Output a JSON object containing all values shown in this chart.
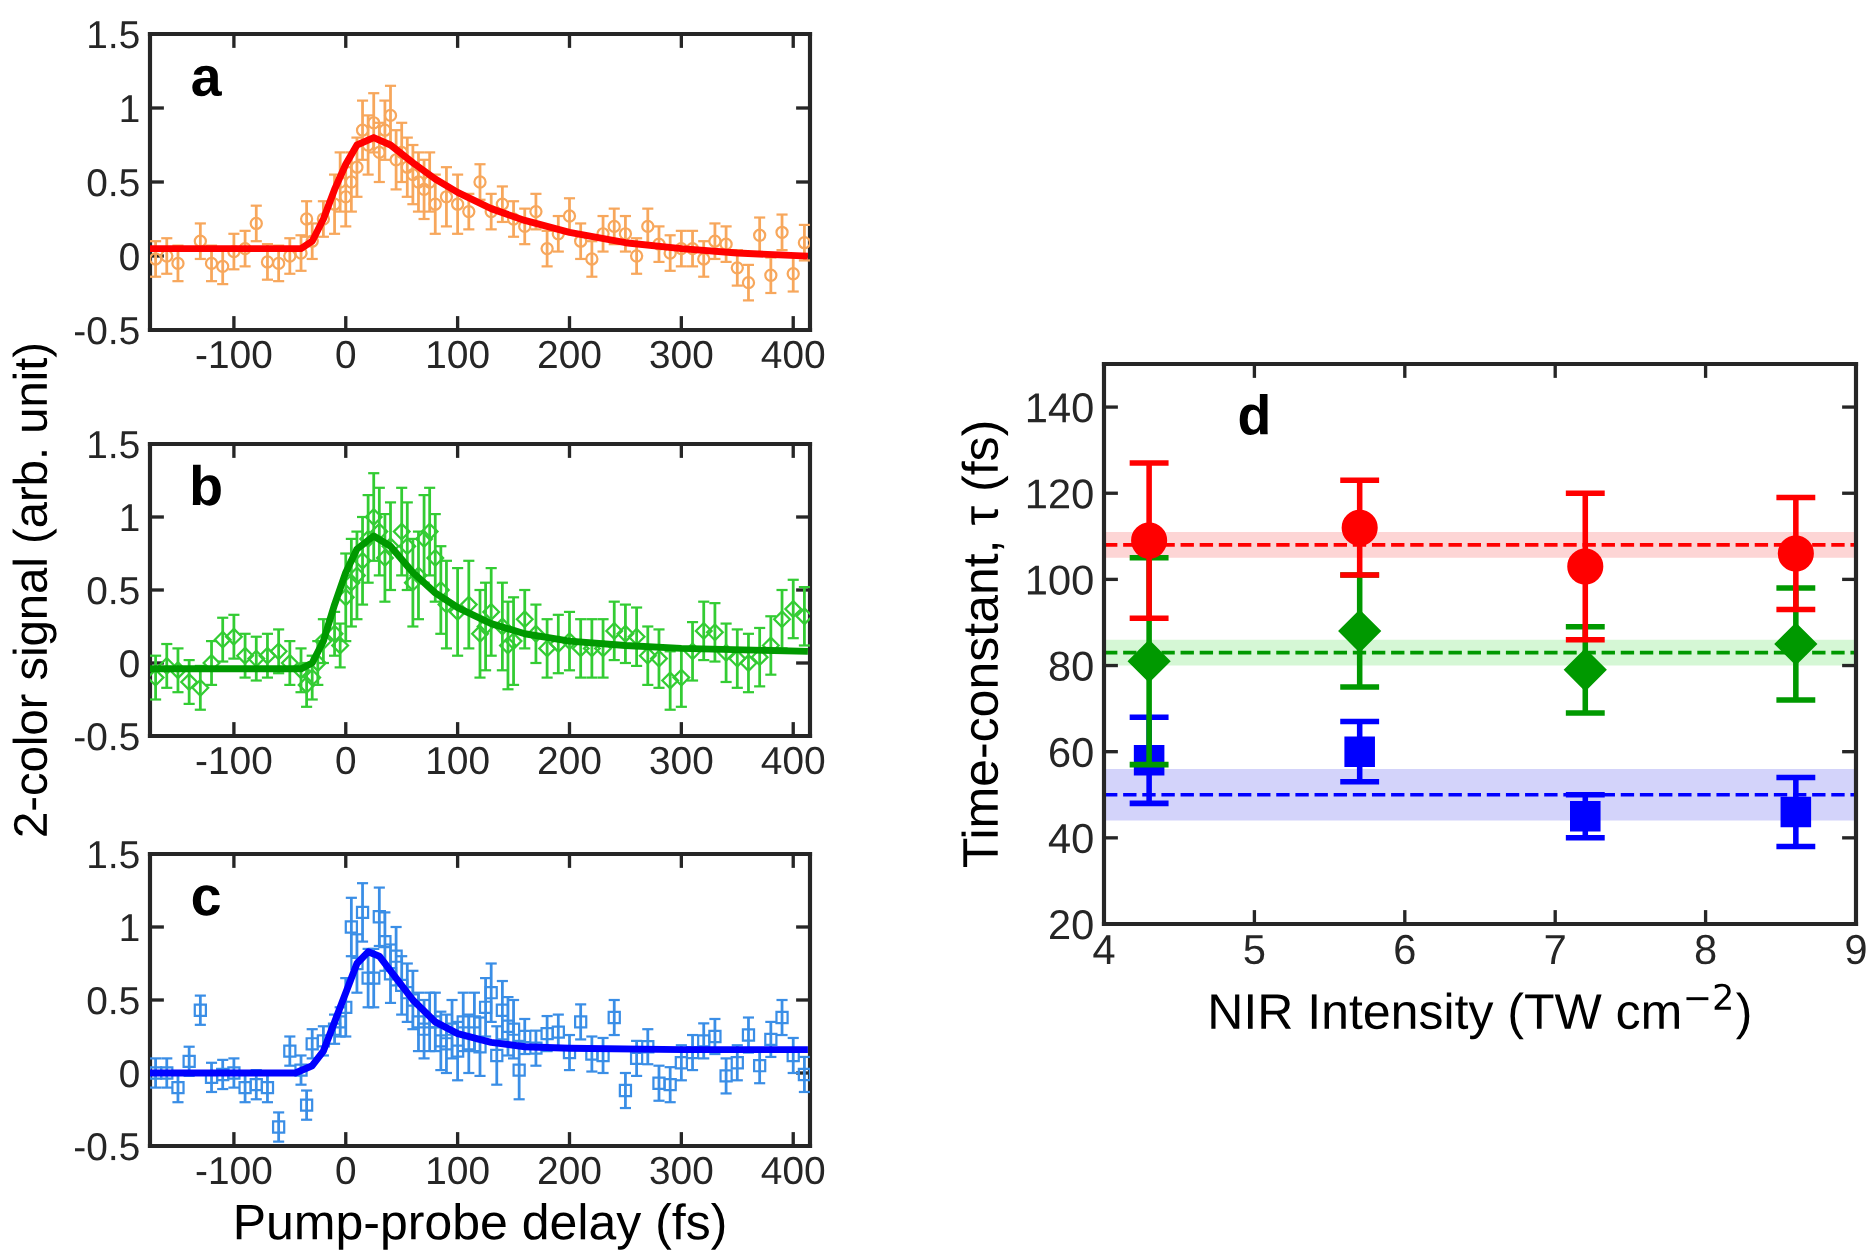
{
  "chart_data": [
    {
      "type": "scatter",
      "xlim": [
        -175,
        415
      ],
      "xticks": [
        -100,
        0,
        100,
        200,
        300,
        400
      ],
      "ylim": [
        -0.5,
        1.5
      ],
      "yticks": [
        -0.5,
        0,
        0.5,
        1,
        1.5
      ],
      "grid": false,
      "annotations": [
        "a"
      ],
      "series": [
        {
          "type": "scatter",
          "marker": "circle",
          "color": "#f7a75c",
          "x": [
            -170,
            -160,
            -150,
            -130,
            -120,
            -110,
            -100,
            -90,
            -80,
            -70,
            -60,
            -50,
            -40,
            -35,
            -30,
            -20,
            -10,
            -5,
            0,
            5,
            10,
            15,
            20,
            25,
            30,
            35,
            40,
            45,
            50,
            55,
            60,
            65,
            70,
            75,
            80,
            90,
            100,
            110,
            120,
            130,
            140,
            150,
            160,
            170,
            180,
            190,
            200,
            210,
            220,
            230,
            240,
            250,
            260,
            270,
            280,
            290,
            300,
            310,
            320,
            330,
            340,
            350,
            360,
            370,
            380,
            390,
            400,
            410
          ],
          "values": [
            -0.02,
            0.0,
            -0.05,
            0.1,
            -0.05,
            -0.07,
            0.03,
            0.05,
            0.22,
            -0.04,
            -0.05,
            0.0,
            0.02,
            0.25,
            0.1,
            0.25,
            0.35,
            0.5,
            0.4,
            0.5,
            0.6,
            0.85,
            0.75,
            0.9,
            0.7,
            0.85,
            0.95,
            0.65,
            0.7,
            0.6,
            0.55,
            0.5,
            0.45,
            0.5,
            0.35,
            0.4,
            0.35,
            0.3,
            0.5,
            0.3,
            0.35,
            0.25,
            0.2,
            0.3,
            0.05,
            0.15,
            0.27,
            0.1,
            -0.02,
            0.15,
            0.2,
            0.15,
            0.0,
            0.2,
            0.08,
            0.02,
            0.05,
            0.05,
            -0.02,
            0.1,
            0.08,
            -0.08,
            -0.18,
            0.14,
            -0.13,
            0.16,
            -0.12,
            0.09
          ],
          "errors": [
            0.12,
            0.12,
            0.12,
            0.12,
            0.12,
            0.12,
            0.12,
            0.12,
            0.12,
            0.12,
            0.12,
            0.12,
            0.12,
            0.12,
            0.12,
            0.12,
            0.2,
            0.2,
            0.2,
            0.2,
            0.2,
            0.2,
            0.2,
            0.2,
            0.2,
            0.2,
            0.2,
            0.2,
            0.2,
            0.2,
            0.2,
            0.2,
            0.2,
            0.2,
            0.2,
            0.2,
            0.2,
            0.12,
            0.12,
            0.12,
            0.12,
            0.12,
            0.12,
            0.12,
            0.12,
            0.12,
            0.12,
            0.12,
            0.12,
            0.12,
            0.12,
            0.12,
            0.12,
            0.12,
            0.12,
            0.12,
            0.12,
            0.12,
            0.12,
            0.12,
            0.12,
            0.12,
            0.12,
            0.12,
            0.12,
            0.12,
            0.12,
            0.12
          ]
        },
        {
          "type": "line",
          "color": "#ff0000",
          "x": [
            -175,
            -40,
            -30,
            -20,
            -10,
            0,
            10,
            25,
            40,
            60,
            80,
            100,
            130,
            160,
            200,
            250,
            300,
            350,
            410
          ],
          "values": [
            0.05,
            0.05,
            0.1,
            0.25,
            0.45,
            0.62,
            0.75,
            0.8,
            0.75,
            0.63,
            0.52,
            0.43,
            0.32,
            0.24,
            0.16,
            0.09,
            0.05,
            0.02,
            0.0
          ]
        }
      ]
    },
    {
      "type": "scatter",
      "xlim": [
        -175,
        415
      ],
      "xticks": [
        -100,
        0,
        100,
        200,
        300,
        400
      ],
      "ylim": [
        -0.5,
        1.5
      ],
      "yticks": [
        -0.5,
        0,
        0.5,
        1,
        1.5
      ],
      "grid": false,
      "annotations": [
        "b"
      ],
      "ylabel": "2-color signal (arb. unit)",
      "series": [
        {
          "type": "scatter",
          "marker": "diamond",
          "color": "#33cc33",
          "x": [
            -170,
            -160,
            -150,
            -140,
            -130,
            -120,
            -110,
            -100,
            -90,
            -80,
            -70,
            -60,
            -50,
            -40,
            -35,
            -30,
            -25,
            -20,
            -10,
            -5,
            0,
            5,
            10,
            15,
            20,
            25,
            30,
            35,
            40,
            50,
            55,
            60,
            65,
            70,
            75,
            80,
            85,
            90,
            100,
            110,
            120,
            125,
            130,
            140,
            145,
            150,
            160,
            170,
            180,
            190,
            200,
            210,
            220,
            230,
            240,
            250,
            260,
            270,
            280,
            290,
            300,
            310,
            320,
            330,
            340,
            350,
            360,
            370,
            380,
            390,
            400,
            410
          ],
          "values": [
            -0.1,
            -0.02,
            -0.05,
            -0.13,
            -0.17,
            0.0,
            0.16,
            0.18,
            0.05,
            0.03,
            0.05,
            0.08,
            0.0,
            -0.05,
            -0.15,
            -0.1,
            0.0,
            0.15,
            0.2,
            0.12,
            0.45,
            0.55,
            0.6,
            0.7,
            0.85,
            1.0,
            0.9,
            0.72,
            0.8,
            0.9,
            0.8,
            0.55,
            0.6,
            0.85,
            0.9,
            0.72,
            0.5,
            0.4,
            0.35,
            0.4,
            0.2,
            0.25,
            0.35,
            0.25,
            0.12,
            0.15,
            0.3,
            0.2,
            0.1,
            0.13,
            0.15,
            0.1,
            0.1,
            0.1,
            0.22,
            0.2,
            0.18,
            0.05,
            0.03,
            -0.12,
            -0.1,
            0.08,
            0.22,
            0.21,
            0.07,
            0.03,
            0.0,
            0.04,
            0.12,
            0.3,
            0.37,
            0.32
          ],
          "errors": [
            0.15,
            0.15,
            0.15,
            0.15,
            0.15,
            0.15,
            0.15,
            0.15,
            0.15,
            0.15,
            0.15,
            0.15,
            0.15,
            0.15,
            0.15,
            0.15,
            0.15,
            0.15,
            0.15,
            0.15,
            0.3,
            0.3,
            0.3,
            0.3,
            0.3,
            0.3,
            0.3,
            0.3,
            0.3,
            0.3,
            0.3,
            0.3,
            0.3,
            0.3,
            0.3,
            0.3,
            0.3,
            0.3,
            0.3,
            0.3,
            0.3,
            0.3,
            0.3,
            0.3,
            0.3,
            0.3,
            0.2,
            0.2,
            0.2,
            0.2,
            0.2,
            0.2,
            0.2,
            0.2,
            0.2,
            0.2,
            0.2,
            0.2,
            0.2,
            0.2,
            0.2,
            0.2,
            0.2,
            0.2,
            0.2,
            0.2,
            0.2,
            0.2,
            0.2,
            0.2,
            0.2,
            0.2
          ]
        },
        {
          "type": "line",
          "color": "#009900",
          "x": [
            -175,
            -40,
            -30,
            -20,
            -10,
            0,
            10,
            25,
            40,
            60,
            80,
            100,
            130,
            160,
            200,
            250,
            300,
            410
          ],
          "values": [
            -0.04,
            -0.04,
            0.0,
            0.15,
            0.4,
            0.62,
            0.78,
            0.87,
            0.8,
            0.62,
            0.48,
            0.38,
            0.27,
            0.2,
            0.15,
            0.12,
            0.1,
            0.08
          ]
        }
      ]
    },
    {
      "type": "scatter",
      "xlim": [
        -175,
        415
      ],
      "xticks": [
        -100,
        0,
        100,
        200,
        300,
        400
      ],
      "ylim": [
        -0.5,
        1.5
      ],
      "yticks": [
        -0.5,
        0,
        0.5,
        1,
        1.5
      ],
      "grid": false,
      "annotations": [
        "c"
      ],
      "xlabel": "Pump-probe delay (fs)",
      "series": [
        {
          "type": "scatter",
          "marker": "square",
          "color": "#3a8ee6",
          "x": [
            -170,
            -160,
            -150,
            -140,
            -130,
            -120,
            -110,
            -100,
            -90,
            -80,
            -70,
            -60,
            -50,
            -40,
            -35,
            -30,
            -20,
            -10,
            -5,
            0,
            5,
            10,
            15,
            20,
            25,
            30,
            35,
            40,
            45,
            50,
            55,
            60,
            65,
            70,
            75,
            80,
            85,
            90,
            95,
            100,
            105,
            110,
            115,
            120,
            125,
            130,
            135,
            140,
            145,
            150,
            155,
            160,
            170,
            180,
            190,
            200,
            210,
            220,
            230,
            240,
            250,
            260,
            270,
            280,
            290,
            300,
            310,
            320,
            330,
            340,
            350,
            360,
            370,
            380,
            390,
            400,
            410
          ],
          "values": [
            0.0,
            0.0,
            -0.1,
            0.08,
            0.43,
            -0.03,
            -0.01,
            0.0,
            -0.1,
            -0.08,
            -0.1,
            -0.37,
            0.15,
            0.02,
            -0.22,
            0.2,
            0.22,
            0.3,
            0.35,
            0.45,
            1.0,
            0.75,
            1.1,
            0.65,
            0.65,
            1.07,
            0.9,
            0.68,
            0.8,
            0.6,
            0.55,
            0.5,
            0.35,
            0.3,
            0.35,
            0.35,
            0.22,
            0.2,
            0.3,
            0.15,
            0.35,
            0.2,
            0.35,
            0.18,
            0.45,
            0.55,
            0.12,
            0.43,
            0.32,
            0.3,
            0.02,
            0.25,
            0.17,
            0.27,
            0.28,
            0.14,
            0.35,
            0.13,
            0.12,
            0.38,
            -0.12,
            0.1,
            0.18,
            -0.07,
            -0.08,
            0.07,
            0.14,
            0.22,
            0.25,
            -0.02,
            0.07,
            0.26,
            0.05,
            0.23,
            0.38,
            0.12,
            -0.01
          ],
          "errors": [
            0.1,
            0.1,
            0.1,
            0.1,
            0.1,
            0.1,
            0.1,
            0.1,
            0.1,
            0.1,
            0.1,
            0.1,
            0.1,
            0.1,
            0.1,
            0.1,
            0.1,
            0.1,
            0.1,
            0.2,
            0.2,
            0.2,
            0.2,
            0.2,
            0.2,
            0.2,
            0.2,
            0.2,
            0.2,
            0.2,
            0.2,
            0.2,
            0.2,
            0.2,
            0.2,
            0.2,
            0.2,
            0.2,
            0.2,
            0.2,
            0.2,
            0.2,
            0.2,
            0.2,
            0.2,
            0.2,
            0.2,
            0.2,
            0.2,
            0.2,
            0.2,
            0.12,
            0.12,
            0.12,
            0.12,
            0.12,
            0.12,
            0.12,
            0.12,
            0.12,
            0.12,
            0.12,
            0.12,
            0.12,
            0.12,
            0.12,
            0.12,
            0.12,
            0.12,
            0.12,
            0.12,
            0.12,
            0.12,
            0.12,
            0.12,
            0.12,
            0.12
          ]
        },
        {
          "type": "line",
          "color": "#0000ff",
          "x": [
            -175,
            -45,
            -30,
            -20,
            -10,
            0,
            10,
            20,
            30,
            45,
            60,
            80,
            100,
            130,
            160,
            200,
            300,
            410
          ],
          "values": [
            0.0,
            0.0,
            0.05,
            0.15,
            0.35,
            0.55,
            0.75,
            0.83,
            0.8,
            0.65,
            0.5,
            0.35,
            0.27,
            0.21,
            0.18,
            0.17,
            0.16,
            0.16
          ]
        }
      ]
    },
    {
      "type": "scatter",
      "xlim": [
        4,
        9
      ],
      "xticks": [
        4,
        5,
        6,
        7,
        8,
        9
      ],
      "ylim": [
        20,
        150
      ],
      "yticks": [
        20,
        40,
        60,
        80,
        100,
        120,
        140
      ],
      "grid": false,
      "annotations": [
        "d"
      ],
      "xlabel": "NIR Intensity (TW cm$^{−2}$)",
      "ylabel": "Time-constant, τ (fs)",
      "x": [
        4.3,
        5.7,
        7.2,
        8.6
      ],
      "series": [
        {
          "marker": "circle",
          "color": "#ff0000",
          "values": [
            109,
            112,
            103,
            106
          ],
          "errors": [
            [
              91,
              127
            ],
            [
              101,
              123
            ],
            [
              86,
              120
            ],
            [
              93,
              119
            ]
          ]
        },
        {
          "marker": "diamond",
          "color": "#009900",
          "values": [
            81,
            88,
            79,
            85
          ],
          "errors": [
            [
              57,
              105
            ],
            [
              75,
              101
            ],
            [
              69,
              89
            ],
            [
              72,
              98
            ]
          ]
        },
        {
          "marker": "square",
          "color": "#0000ff",
          "values": [
            58,
            60,
            45,
            46
          ],
          "errors": [
            [
              48,
              68
            ],
            [
              53,
              67
            ],
            [
              40,
              50
            ],
            [
              38,
              54
            ]
          ]
        }
      ],
      "ref_lines": [
        {
          "axis": "y",
          "value": 108,
          "color": "#ff0000",
          "line_style": "dashed"
        },
        {
          "axis": "y",
          "value": 83,
          "color": "#009900",
          "line_style": "dashed"
        },
        {
          "axis": "y",
          "value": 50,
          "color": "#0000ff",
          "line_style": "dashed"
        }
      ],
      "bands": [
        {
          "axis": "y",
          "from": 105,
          "to": 111,
          "color": "#fdd5d5"
        },
        {
          "axis": "y",
          "from": 80,
          "to": 86,
          "color": "#d5f7d5"
        },
        {
          "axis": "y",
          "from": 44,
          "to": 56,
          "color": "#d3d3fa"
        }
      ]
    }
  ]
}
